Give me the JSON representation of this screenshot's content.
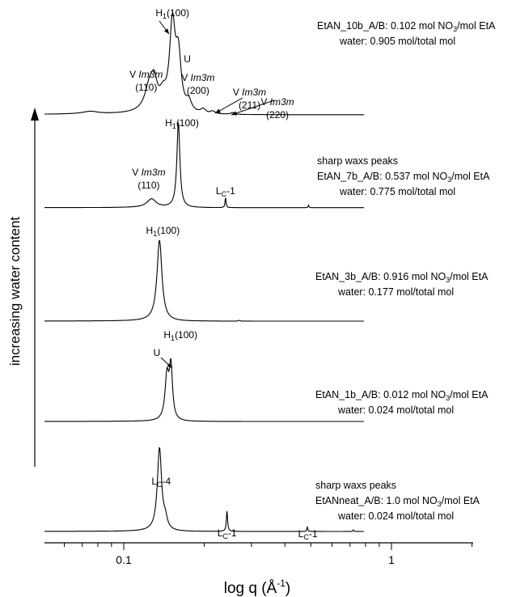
{
  "chart_data": {
    "type": "line",
    "xlabel_main": "log q (Å",
    "xlabel_sup": "-1",
    "xlabel_close": ")",
    "ylabel": "increasing water content",
    "xscale": "log",
    "xlim": [
      0.05,
      2
    ],
    "x_ticks": [
      "0.1",
      "1"
    ],
    "grid": false,
    "series": [
      {
        "caption": [
          "EtAN_10b_A/B: 0.102 mol NO",
          "3",
          "/mol EtA",
          "water: 0.905 mol/total mol"
        ],
        "baseline": 0.03,
        "peaks": [
          {
            "q": 0.075,
            "h": 0.03,
            "w": 0.006
          },
          {
            "q": 0.125,
            "h": 0.3,
            "w": 0.006
          },
          {
            "q": 0.13,
            "h": 0.26,
            "w": 0.004
          },
          {
            "q": 0.14,
            "h": 0.16,
            "w": 0.005
          },
          {
            "q": 0.152,
            "h": 1.0,
            "w": 0.0045
          },
          {
            "q": 0.16,
            "h": 0.62,
            "w": 0.0045
          },
          {
            "q": 0.175,
            "h": 0.12,
            "w": 0.005
          },
          {
            "q": 0.198,
            "h": 0.05,
            "w": 0.005
          },
          {
            "q": 0.215,
            "h": 0.03,
            "w": 0.005
          },
          {
            "q": 0.255,
            "h": 0.02,
            "w": 0.005
          }
        ],
        "labels": [
          {
            "text": "V ",
            "ital": "Im3m",
            "line2": "(110)",
            "q": 0.123
          },
          {
            "text": "H",
            "sub": "1",
            "tail": "(100)",
            "q": 0.152
          },
          {
            "text": "U",
            "q": 0.168
          },
          {
            "text": "V ",
            "ital": "Im3m",
            "line2": "(200)",
            "q": 0.206
          },
          {
            "text": "V ",
            "ital": "Im3m",
            "line2": "(211)",
            "q": 0.295
          },
          {
            "text": "V ",
            "ital": "Im3m",
            "line2": "(220)",
            "q": 0.375
          }
        ]
      },
      {
        "caption": [
          "sharp waxs peaks",
          "EtAN_7b_A/B: 0.537 mol NO",
          "3",
          "/mol EtA",
          "water: 0.775 mol/total mol"
        ],
        "baseline": 0.05,
        "peaks": [
          {
            "q": 0.127,
            "h": 0.1,
            "w": 0.006
          },
          {
            "q": 0.16,
            "h": 1.0,
            "w": 0.0025
          },
          {
            "q": 0.24,
            "h": 0.12,
            "w": 0.0012
          },
          {
            "q": 0.49,
            "h": 0.03,
            "w": 0.002
          }
        ],
        "labels": [
          {
            "text": "V ",
            "ital": "Im3m",
            "line2": "(110)",
            "q": 0.124
          },
          {
            "text": "H",
            "sub": "1",
            "tail": "(100)",
            "q": 0.165
          },
          {
            "text": "L",
            "sub": "C",
            "tail": "-1",
            "q": 0.24
          }
        ]
      },
      {
        "caption": [
          "EtAN_3b_A/B: 0.916 mol NO",
          "3",
          "/mol EtA",
          "water: 0.177 mol/total mol"
        ],
        "baseline": 0.02,
        "peaks": [
          {
            "q": 0.136,
            "h": 1.0,
            "w": 0.0035
          },
          {
            "q": 0.27,
            "h": 0.01,
            "w": 0.002
          }
        ],
        "labels": [
          {
            "text": "H",
            "sub": "1",
            "tail": "(100)",
            "q": 0.14
          }
        ]
      },
      {
        "caption": [
          "EtAN_1b_A/B: 0.012 mol NO",
          "3",
          "/mol EtA",
          "water: 0.024 mol/total mol"
        ],
        "baseline": 0.0,
        "peaks": [
          {
            "q": 0.145,
            "h": 0.82,
            "w": 0.0028
          },
          {
            "q": 0.15,
            "h": 1.0,
            "w": 0.0025
          }
        ],
        "labels": [
          {
            "text": "U",
            "q": 0.133
          },
          {
            "text": "H",
            "sub": "1",
            "tail": "(100)",
            "q": 0.163
          }
        ]
      },
      {
        "caption": [
          "sharp waxs peaks",
          "EtANneat_A/B: 1.0 mol NO",
          "3",
          "/mol EtA",
          "water: 0.024 mol/total mol"
        ],
        "baseline": 0.02,
        "peaks": [
          {
            "q": 0.136,
            "h": 1.0,
            "w": 0.003
          },
          {
            "q": 0.143,
            "h": 0.12,
            "w": 0.003
          },
          {
            "q": 0.243,
            "h": 0.25,
            "w": 0.0015
          },
          {
            "q": 0.485,
            "h": 0.06,
            "w": 0.002
          },
          {
            "q": 0.72,
            "h": 0.02,
            "w": 0.003
          }
        ],
        "labels": [
          {
            "text": "L",
            "sub": "C",
            "tail": "-4",
            "q": 0.138
          },
          {
            "text": "L",
            "sub": "C",
            "tail": "-1",
            "q": 0.243
          },
          {
            "text": "L",
            "sub": "C",
            "tail": "-1",
            "q": 0.487
          }
        ]
      }
    ]
  }
}
